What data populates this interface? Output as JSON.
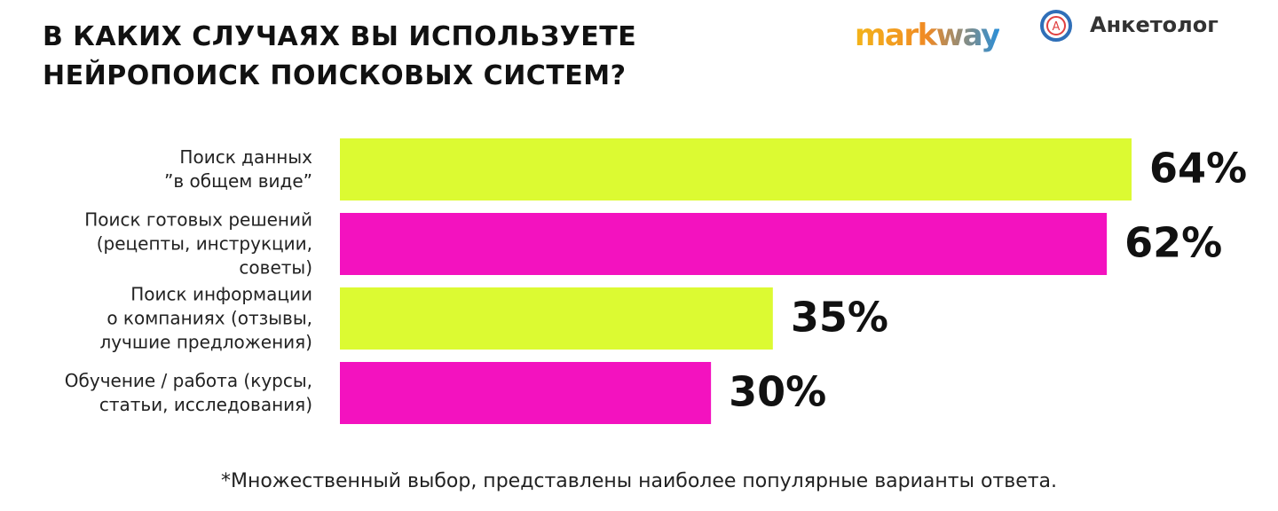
{
  "chart_data": {
    "type": "hbar",
    "title": "В КАКИХ СЛУЧАЯХ ВЫ ИСПОЛЬЗУЕТЕ\nНЕЙРОПОИСК ПОИСКОВЫХ СИСТЕМ?",
    "categories": [
      "Поиск данных\n”в общем виде”",
      "Поиск готовых решений\n(рецепты, инструкции,\nсоветы)",
      "Поиск информации\nо компаниях (отзывы,\nлучшие предложения)",
      "Обучение / работа (курсы,\nстатьи, исследования)"
    ],
    "values": [
      64,
      62,
      35,
      30
    ],
    "value_labels": [
      "64%",
      "62%",
      "35%",
      "30%"
    ],
    "colors": [
      "#dcfa32",
      "#f312bf",
      "#dcfa32",
      "#f312bf"
    ],
    "note": "*Множественный выбор, представлены наиболее популярные варианты ответа."
  },
  "logos": [
    "markway",
    "Анкетолог"
  ]
}
